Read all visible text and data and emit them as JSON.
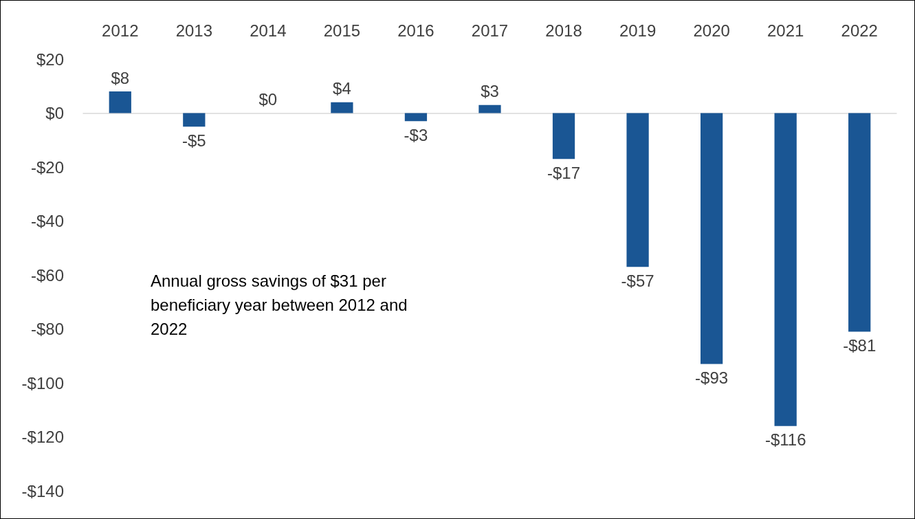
{
  "chart_data": {
    "type": "bar",
    "categories": [
      "2012",
      "2013",
      "2014",
      "2015",
      "2016",
      "2017",
      "2018",
      "2019",
      "2020",
      "2021",
      "2022"
    ],
    "values": [
      8,
      -5,
      0,
      4,
      -3,
      3,
      -17,
      -57,
      -93,
      -116,
      -81
    ],
    "value_labels": [
      "$8",
      "-$5",
      "$0",
      "$4",
      "-$3",
      "$3",
      "-$17",
      "-$57",
      "-$93",
      "-$116",
      "-$81"
    ],
    "color": "#1a5694",
    "ylim": [
      -140,
      20
    ],
    "yticks": [
      {
        "value": 20,
        "label": "$20"
      },
      {
        "value": 0,
        "label": "$0"
      },
      {
        "value": -20,
        "label": "-$20"
      },
      {
        "value": -40,
        "label": "-$40"
      },
      {
        "value": -60,
        "label": "-$60"
      },
      {
        "value": -80,
        "label": "-$80"
      },
      {
        "value": -100,
        "label": "-$100"
      },
      {
        "value": -120,
        "label": "-$120"
      },
      {
        "value": -140,
        "label": "-$140"
      }
    ],
    "annotations": [
      "Annual gross savings of $31 per beneficiary year between 2012 and 2022"
    ]
  }
}
